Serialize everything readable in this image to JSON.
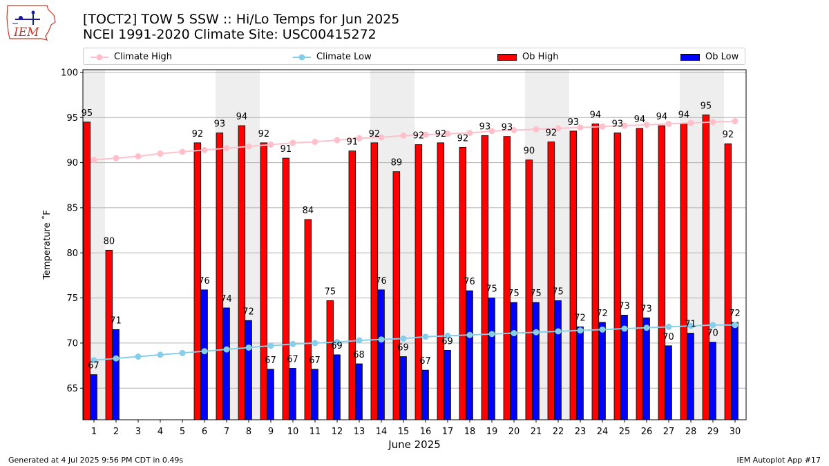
{
  "header": {
    "title_line1": "[TOCT2] TOW 5 SSW :: Hi/Lo Temps for Jun 2025",
    "title_line2": "NCEI 1991-2020 Climate Site: USC00415272",
    "logo_text": "IEM"
  },
  "footer": {
    "generated": "Generated at 4 Jul 2025 9:56 PM CDT in 0.49s",
    "app": "IEM Autoplot App #17"
  },
  "colors": {
    "ob_high": "#ff0000",
    "ob_low": "#0000ff",
    "climate_high": "#ffc0cb",
    "climate_low": "#87ceeb",
    "weekend_shade": "#eeeeee",
    "grid": "#b0b0b0"
  },
  "chart_data": {
    "type": "bar",
    "xlabel": "June 2025",
    "ylabel": "Temperature ˚F",
    "ylim": [
      61.5,
      100.3
    ],
    "yticks": [
      65,
      70,
      75,
      80,
      85,
      90,
      95,
      100
    ],
    "categories": [
      "1",
      "2",
      "3",
      "4",
      "5",
      "6",
      "7",
      "8",
      "9",
      "10",
      "11",
      "12",
      "13",
      "14",
      "15",
      "16",
      "17",
      "18",
      "19",
      "20",
      "21",
      "22",
      "23",
      "24",
      "25",
      "26",
      "27",
      "28",
      "29",
      "30"
    ],
    "weekend_days": [
      1,
      7,
      8,
      14,
      15,
      21,
      22,
      28,
      29
    ],
    "grid": true,
    "legend_position": "top",
    "series": [
      {
        "name": "Climate High",
        "kind": "line",
        "values": [
          90.3,
          90.5,
          90.7,
          91.0,
          91.2,
          91.4,
          91.6,
          91.8,
          92.0,
          92.2,
          92.3,
          92.5,
          92.7,
          92.8,
          93.0,
          93.1,
          93.2,
          93.3,
          93.5,
          93.6,
          93.7,
          93.8,
          93.9,
          94.0,
          94.1,
          94.2,
          94.3,
          94.4,
          94.5,
          94.6
        ]
      },
      {
        "name": "Climate Low",
        "kind": "line",
        "values": [
          68.1,
          68.3,
          68.5,
          68.7,
          68.9,
          69.1,
          69.3,
          69.5,
          69.7,
          69.9,
          70.0,
          70.1,
          70.3,
          70.4,
          70.5,
          70.7,
          70.8,
          70.9,
          71.0,
          71.1,
          71.2,
          71.3,
          71.4,
          71.5,
          71.6,
          71.7,
          71.8,
          71.9,
          72.0,
          72.0
        ]
      },
      {
        "name": "Ob High",
        "kind": "bar",
        "values": [
          94.5,
          80.3,
          null,
          null,
          null,
          92.2,
          93.3,
          94.1,
          92.2,
          90.5,
          83.7,
          74.7,
          91.3,
          92.2,
          89.0,
          92.0,
          92.2,
          91.7,
          93.0,
          92.9,
          90.3,
          92.3,
          93.5,
          94.3,
          93.3,
          93.8,
          94.1,
          94.3,
          95.3,
          92.1
        ],
        "labels": [
          "95",
          "80",
          "",
          "",
          "",
          "92",
          "93",
          "94",
          "92",
          "91",
          "84",
          "75",
          "91",
          "92",
          "89",
          "92",
          "92",
          "92",
          "93",
          "93",
          "90",
          "92",
          "93",
          "94",
          "93",
          "94",
          "94",
          "94",
          "95",
          "92"
        ]
      },
      {
        "name": "Ob Low",
        "kind": "bar",
        "values": [
          66.5,
          71.5,
          null,
          null,
          null,
          75.9,
          73.9,
          72.5,
          67.1,
          67.2,
          67.1,
          68.7,
          67.7,
          75.9,
          68.5,
          67.0,
          69.2,
          75.8,
          75.0,
          74.5,
          74.5,
          74.7,
          71.8,
          72.3,
          73.1,
          72.8,
          69.7,
          71.1,
          70.1,
          72.3
        ],
        "labels": [
          "67",
          "71",
          "",
          "",
          "",
          "76",
          "74",
          "72",
          "67",
          "67",
          "67",
          "69",
          "68",
          "76",
          "69",
          "67",
          "69",
          "76",
          "75",
          "75",
          "75",
          "75",
          "72",
          "72",
          "73",
          "73",
          "70",
          "71",
          "70",
          "72"
        ]
      }
    ]
  }
}
